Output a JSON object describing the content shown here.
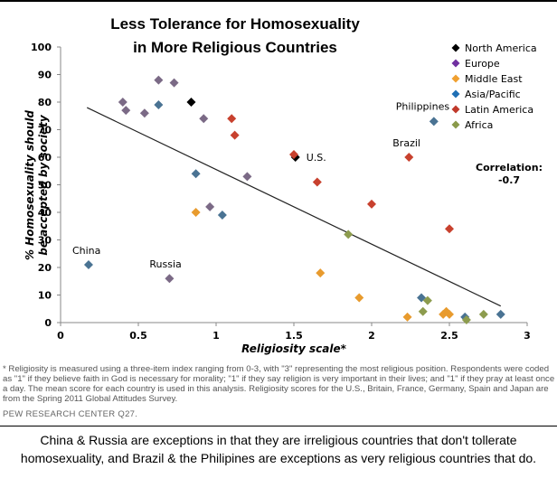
{
  "chart_data": {
    "type": "scatter",
    "title_line1": "Less Tolerance for Homosexuality",
    "title_line2": "in More Religious Countries",
    "xlabel": "Religiosity scale*",
    "ylabel_line1": "% Homosexuality should",
    "ylabel_line2": "be accepted by society",
    "xlim": [
      0,
      3
    ],
    "ylim": [
      0,
      100
    ],
    "x_ticks": [
      0,
      0.5,
      1,
      1.5,
      2,
      2.5,
      3
    ],
    "x_tick_labels": [
      "0",
      "0.5",
      "1",
      "1.5",
      "2",
      "2.5",
      "3"
    ],
    "y_ticks": [
      0,
      10,
      20,
      30,
      40,
      50,
      60,
      70,
      80,
      90,
      100
    ],
    "y_tick_labels": [
      "0",
      "10",
      "20",
      "30",
      "40",
      "50",
      "60",
      "70",
      "80",
      "90",
      "100"
    ],
    "grid": false,
    "legend_position": "top-right",
    "series": [
      {
        "name": "North America",
        "color": "#000000",
        "points": [
          [
            0.84,
            80
          ],
          [
            1.51,
            60
          ]
        ]
      },
      {
        "name": "Europe",
        "color": "#7b6a86",
        "points": [
          [
            0.4,
            80
          ],
          [
            0.42,
            77
          ],
          [
            0.54,
            76
          ],
          [
            0.63,
            88
          ],
          [
            0.73,
            87
          ],
          [
            0.92,
            74
          ],
          [
            1.2,
            53
          ],
          [
            0.96,
            42
          ],
          [
            0.7,
            16
          ]
        ]
      },
      {
        "name": "Middle East",
        "color": "#e89b2e",
        "points": [
          [
            0.87,
            40
          ],
          [
            1.67,
            18
          ],
          [
            1.92,
            9
          ],
          [
            2.23,
            2
          ],
          [
            2.46,
            3
          ],
          [
            2.48,
            4
          ],
          [
            2.5,
            3
          ]
        ]
      },
      {
        "name": "Asia/Pacific",
        "color": "#4a7393",
        "points": [
          [
            0.63,
            79
          ],
          [
            0.87,
            54
          ],
          [
            1.04,
            39
          ],
          [
            0.18,
            21
          ],
          [
            2.4,
            73
          ],
          [
            2.32,
            9
          ],
          [
            2.6,
            2
          ],
          [
            2.83,
            3
          ]
        ]
      },
      {
        "name": "Latin America",
        "color": "#c8412e",
        "points": [
          [
            1.1,
            74
          ],
          [
            1.12,
            68
          ],
          [
            1.5,
            61
          ],
          [
            1.65,
            51
          ],
          [
            2.0,
            43
          ],
          [
            2.24,
            60
          ],
          [
            2.5,
            34
          ]
        ]
      },
      {
        "name": "Africa",
        "color": "#8d9c4e",
        "points": [
          [
            1.85,
            32
          ],
          [
            2.36,
            8
          ],
          [
            2.33,
            4
          ],
          [
            2.61,
            1
          ],
          [
            2.72,
            3
          ]
        ]
      }
    ],
    "legend_legend_color_europe": "#7030a0",
    "legend_colors": [
      "#000000",
      "#7030a0",
      "#f0a030",
      "#1f6fb4",
      "#c0392b",
      "#8a9a4a"
    ],
    "trendline": {
      "x": [
        0.17,
        2.83
      ],
      "y": [
        78,
        6
      ]
    },
    "annotations": [
      {
        "text": "China",
        "x": 0.18,
        "y": 21
      },
      {
        "text": "Russia",
        "x": 0.7,
        "y": 16
      },
      {
        "text": "U.S.",
        "x": 1.51,
        "y": 60
      },
      {
        "text": "Brazil",
        "x": 2.24,
        "y": 60
      },
      {
        "text": "Philippines",
        "x": 2.4,
        "y": 73
      }
    ],
    "correlation_label": "Correlation:",
    "correlation_value": "-0.7"
  },
  "footnote": "* Religiosity is measured using a three-item index ranging from 0-3, with \"3\" representing the most religious position. Respondents were coded as \"1\" if they believe faith in God is necessary for morality; \"1\" if they say religion is very important in their lives; and \"1\" if they pray at least once a day. The mean score for each country is used in this analysis. Religiosity scores for the U.S., Britain, France, Germany, Spain and Japan are from the Spring 2011 Global Attitudes Survey.",
  "source": "PEW RESEARCH  CENTER Q27.",
  "caption": "China & Russia are exceptions in that they are irreligious countries that don't tollerate homosexuality, and Brazil & the Philipines are exceptions as very religious countries that do."
}
